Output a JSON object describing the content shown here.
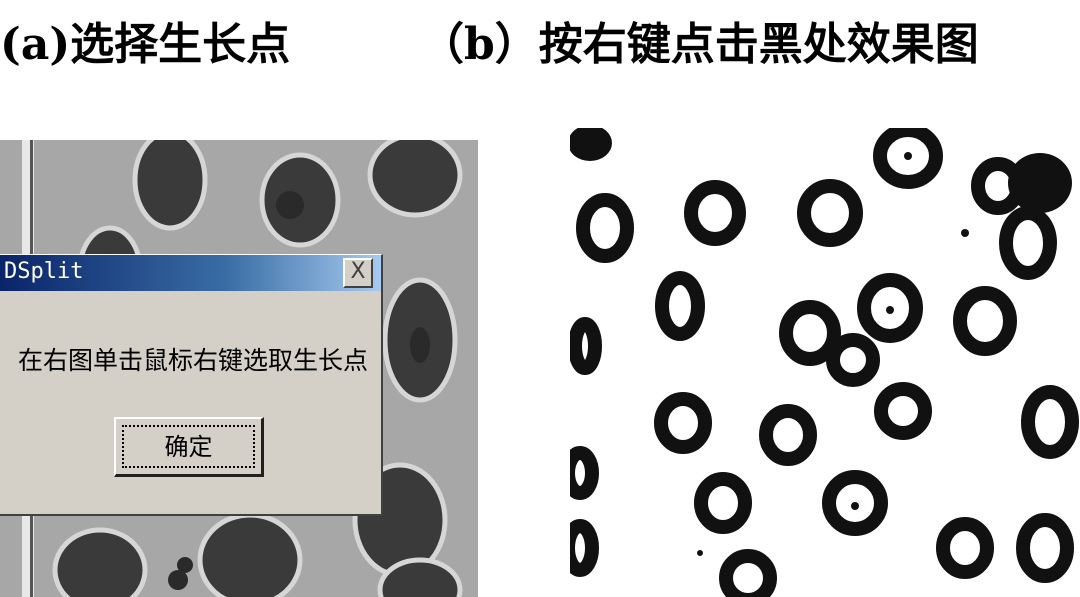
{
  "captions": {
    "left": "(a)选择生长点",
    "right": "（b）按右键点击黑处效果图"
  },
  "dialog": {
    "title": "DSplit",
    "close_label": "X",
    "message": "在右图单击鼠标右键选取生长点",
    "ok_label": "确定"
  },
  "colors": {
    "titlebar_start": "#0a246a",
    "titlebar_end": "#a6caf0",
    "dialog_bg": "#d4d0c8"
  }
}
